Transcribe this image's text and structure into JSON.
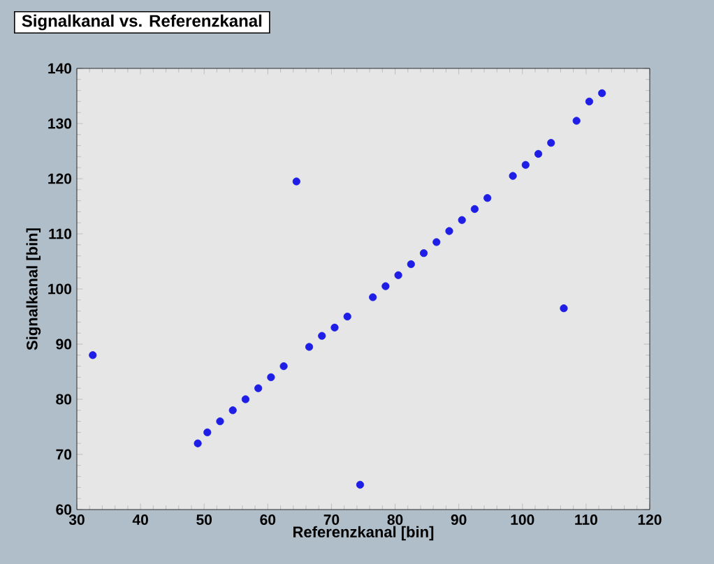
{
  "chart_data": {
    "type": "scatter",
    "title": "Signalkanal vs. Referenzkanal",
    "xlabel": "Referenzkanal [bin]",
    "ylabel": "Signalkanal [bin]",
    "x": [
      49,
      50.5,
      52.5,
      54.5,
      56.5,
      58.5,
      60.5,
      62.5,
      66.5,
      68.5,
      70.5,
      72.5,
      76.5,
      78.5,
      80.5,
      82.5,
      84.5,
      86.5,
      88.5,
      90.5,
      92.5,
      94.5,
      98.5,
      100.5,
      102.5,
      104.5,
      108.5,
      110.5,
      112.5,
      32.5,
      64.5,
      74.5,
      106.5
    ],
    "series": [
      {
        "color": "#1e1ee6",
        "values": [
          72,
          74,
          76,
          78,
          80,
          82,
          84,
          86,
          89.5,
          91.5,
          93,
          95,
          98.5,
          100.5,
          102.5,
          104.5,
          106.5,
          108.5,
          110.5,
          112.5,
          114.5,
          116.5,
          120.5,
          122.5,
          124.5,
          126.5,
          130.5,
          134,
          135.5,
          88,
          119.5,
          64.5,
          96.5
        ]
      }
    ],
    "xlim": [
      30,
      120
    ],
    "ylim": [
      60,
      140
    ],
    "xticks": [
      30,
      40,
      50,
      60,
      70,
      80,
      90,
      100,
      110,
      120
    ],
    "yticks": [
      60,
      70,
      80,
      90,
      100,
      110,
      120,
      130,
      140
    ],
    "marker": "circle",
    "grid": false
  }
}
